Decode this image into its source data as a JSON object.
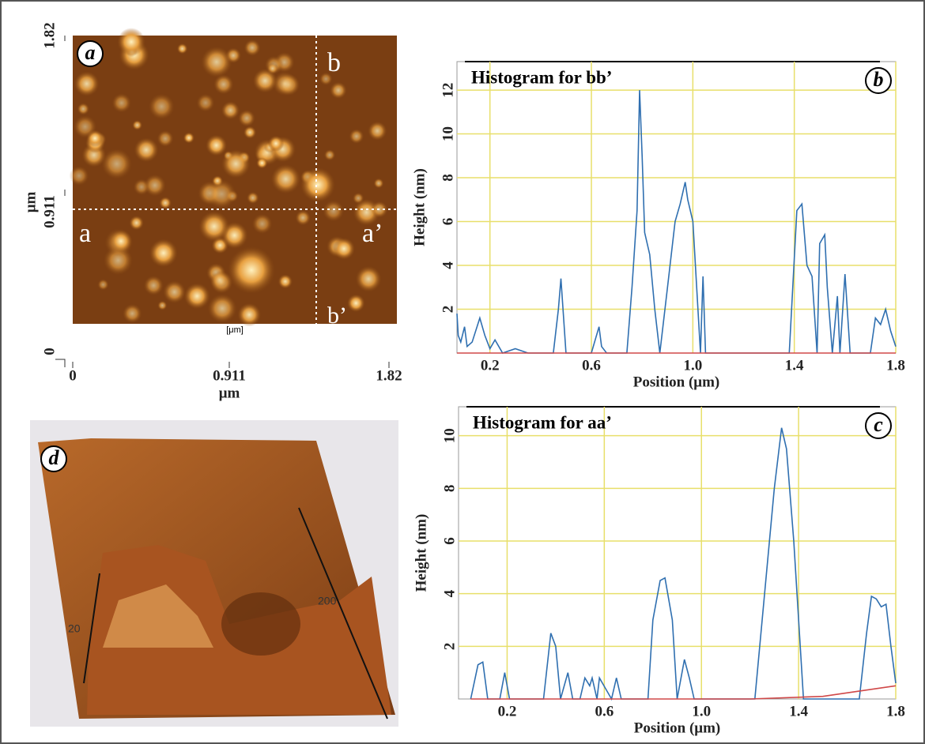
{
  "panel_labels": [
    "a",
    "b",
    "c",
    "d"
  ],
  "image_a": {
    "y_ticks": [
      "1.82",
      "0.911",
      "0"
    ],
    "y_unit": "μm",
    "x_ticks": [
      "0",
      "0.911",
      "1.82"
    ],
    "x_unit": "μm",
    "line_labels": [
      "a",
      "a’",
      "b",
      "b’"
    ],
    "scale_label": "[μm]"
  },
  "image_d": {
    "labels": [
      "200",
      "20"
    ]
  },
  "chart_data": [
    {
      "type": "line",
      "title": "Histogram for bb’",
      "xlabel": "Position (μm)",
      "ylabel": "Height (nm)",
      "xlim": [
        0.07,
        1.8
      ],
      "ylim": [
        0,
        13.3
      ],
      "xticks": [
        0.2,
        0.6,
        {
          "value": 1,
          "label": "1.0"
        },
        1.4,
        1.8
      ],
      "yticks": [
        2,
        4,
        6,
        8,
        10,
        12
      ],
      "grid": true,
      "series": [
        {
          "color": "#2f6fb0",
          "x": [
            0.07,
            0.075,
            0.085,
            0.1,
            0.11,
            0.13,
            0.16,
            0.18,
            0.2,
            0.22,
            0.25,
            0.3,
            0.35,
            0.45,
            0.47,
            0.48,
            0.5,
            0.6,
            0.63,
            0.64,
            0.66,
            0.74,
            0.76,
            0.78,
            0.79,
            0.8,
            0.81,
            0.83,
            0.85,
            0.87,
            0.9,
            0.93,
            0.95,
            0.97,
            0.98,
            1.0,
            1.02,
            1.03,
            1.04,
            1.05,
            1.06,
            1.1,
            1.38,
            1.41,
            1.43,
            1.45,
            1.47,
            1.49,
            1.5,
            1.52,
            1.53,
            1.55,
            1.57,
            1.58,
            1.6,
            1.62,
            1.63,
            1.65,
            1.7,
            1.72,
            1.74,
            1.76,
            1.78,
            1.8
          ],
          "values": [
            1.8,
            0.8,
            0.5,
            1.2,
            0.3,
            0.5,
            1.6,
            0.8,
            0.2,
            0.6,
            0,
            0.2,
            0,
            0,
            2,
            3.4,
            0,
            0,
            1.2,
            0.3,
            0,
            0,
            3,
            6.5,
            12,
            9,
            5.5,
            4.5,
            2,
            0,
            3,
            6,
            6.8,
            7.8,
            7,
            6,
            2,
            0,
            3.5,
            0,
            0,
            0,
            0,
            6.5,
            6.8,
            4,
            3.5,
            0,
            5,
            5.4,
            3,
            0,
            2.6,
            0,
            3.6,
            0,
            0,
            0,
            0,
            1.6,
            1.3,
            2,
            1,
            0.3
          ]
        },
        {
          "color": "#d04848",
          "x": [
            0.07,
            1.8
          ],
          "values": [
            0,
            0
          ]
        }
      ]
    },
    {
      "type": "line",
      "title": "Histogram for aa’",
      "xlabel": "Position (μm)",
      "ylabel": "Height (nm)",
      "xlim": [
        0,
        1.8
      ],
      "ylim": [
        0,
        11.1
      ],
      "xticks": [
        0.2,
        0.6,
        {
          "value": 1,
          "label": "1.0"
        },
        1.4,
        1.8
      ],
      "yticks": [
        2,
        4,
        6,
        8,
        10
      ],
      "grid": true,
      "series": [
        {
          "color": "#2f6fb0",
          "x": [
            0.05,
            0.08,
            0.1,
            0.12,
            0.17,
            0.19,
            0.21,
            0.35,
            0.38,
            0.4,
            0.42,
            0.45,
            0.47,
            0.5,
            0.52,
            0.54,
            0.55,
            0.57,
            0.58,
            0.63,
            0.65,
            0.67,
            0.78,
            0.8,
            0.83,
            0.85,
            0.88,
            0.9,
            0.93,
            0.95,
            0.97,
            1.22,
            1.26,
            1.3,
            1.33,
            1.35,
            1.38,
            1.42,
            1.65,
            1.68,
            1.7,
            1.72,
            1.74,
            1.76,
            1.78,
            1.8
          ],
          "values": [
            0,
            1.3,
            1.4,
            0,
            0,
            1,
            0,
            0,
            2.5,
            2,
            0,
            1,
            0,
            0,
            0.8,
            0.5,
            0.8,
            0,
            0.8,
            0,
            0.8,
            0,
            0,
            3,
            4.5,
            4.6,
            3,
            0,
            1.5,
            0.8,
            0,
            0,
            4,
            8,
            10.3,
            9.5,
            6,
            0,
            0,
            2.5,
            3.9,
            3.8,
            3.5,
            3.6,
            2,
            0.6
          ]
        },
        {
          "color": "#d04848",
          "x": [
            0.05,
            1.2,
            1.5,
            1.8
          ],
          "values": [
            0,
            0,
            0.1,
            0.5
          ]
        }
      ]
    }
  ]
}
